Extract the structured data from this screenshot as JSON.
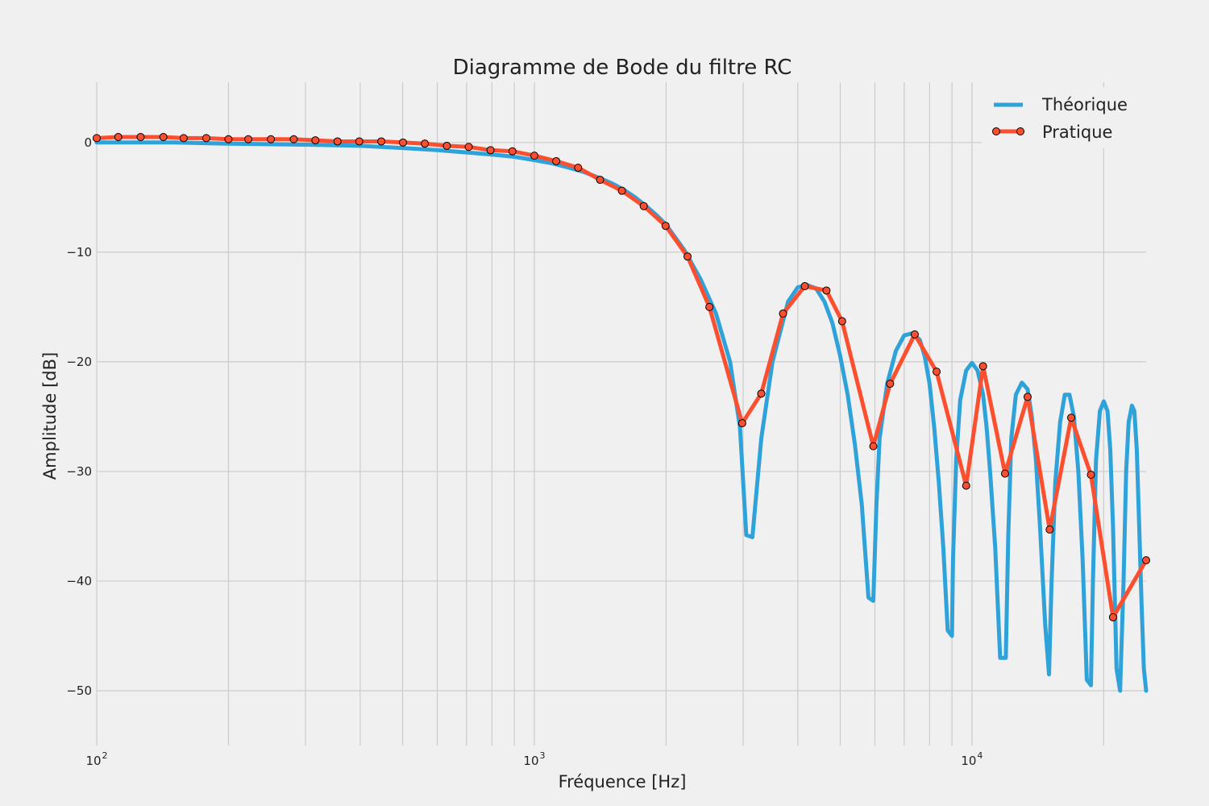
{
  "chart_data": {
    "type": "line",
    "title": "Diagramme de Bode du filtre RC",
    "xlabel": "Fréquence [Hz]",
    "ylabel": "Amplitude [dB]",
    "xscale": "log",
    "xlim": [
      100,
      25000
    ],
    "ylim": [
      -55,
      5.5
    ],
    "grid": true,
    "legend_position": "top-right",
    "x_ticks": [
      100,
      1000,
      10000
    ],
    "x_tick_labels": [
      "10",
      "10",
      "10"
    ],
    "x_tick_exponents": [
      "2",
      "3",
      "4"
    ],
    "y_ticks": [
      0,
      -10,
      -20,
      -30,
      -40,
      -50
    ],
    "y_tick_labels": [
      "0",
      "−10",
      "−20",
      "−30",
      "−40",
      "−50"
    ],
    "series": [
      {
        "name": "Théorique",
        "color": "#30a2da",
        "style": "line",
        "x": [
          100,
          150,
          200,
          300,
          400,
          500,
          600,
          700,
          800,
          900,
          1000,
          1100,
          1200,
          1300,
          1400,
          1500,
          1600,
          1700,
          1800,
          1900,
          2000,
          2200,
          2400,
          2600,
          2800,
          2950,
          3050,
          3150,
          3300,
          3500,
          3800,
          4000,
          4200,
          4400,
          4600,
          4800,
          5000,
          5200,
          5400,
          5600,
          5800,
          5950,
          6050,
          6150,
          6400,
          6700,
          7000,
          7300,
          7600,
          7800,
          8000,
          8200,
          8400,
          8600,
          8800,
          9000,
          9050,
          9200,
          9400,
          9700,
          10000,
          10300,
          10600,
          10800,
          11000,
          11300,
          11600,
          11950,
          12100,
          12300,
          12600,
          13000,
          13400,
          13700,
          14000,
          14300,
          14700,
          15000,
          15200,
          15500,
          15900,
          16300,
          16700,
          17100,
          17500,
          17900,
          18300,
          18700,
          18900,
          19200,
          19600,
          20000,
          20400,
          20700,
          21000,
          21400,
          21800,
          22200,
          22500,
          22800,
          23200,
          23500,
          23800,
          24100,
          24400,
          24700,
          25000
        ],
        "y": [
          0,
          0,
          -0.1,
          -0.2,
          -0.3,
          -0.5,
          -0.7,
          -0.9,
          -1.1,
          -1.3,
          -1.6,
          -1.9,
          -2.3,
          -2.7,
          -3.2,
          -3.7,
          -4.3,
          -5.0,
          -5.8,
          -6.6,
          -7.5,
          -9.8,
          -12.5,
          -15.6,
          -20.0,
          -26.0,
          -35.8,
          -36.0,
          -27.0,
          -20.0,
          -14.5,
          -13.2,
          -13.0,
          -13.3,
          -14.5,
          -16.5,
          -19.5,
          -23.0,
          -27.5,
          -33.0,
          -41.5,
          -41.8,
          -33.0,
          -27.0,
          -22.0,
          -19.0,
          -17.6,
          -17.4,
          -18.0,
          -19.5,
          -22.0,
          -26.0,
          -31.0,
          -37.0,
          -44.5,
          -45.0,
          -38.0,
          -29.0,
          -23.5,
          -20.8,
          -20.1,
          -20.8,
          -23.0,
          -26.0,
          -30.0,
          -37.0,
          -47.0,
          -47.0,
          -36.0,
          -27.0,
          -23.0,
          -21.9,
          -22.5,
          -25.0,
          -29.0,
          -35.0,
          -44.0,
          -48.5,
          -40.0,
          -31.0,
          -25.5,
          -23.0,
          -23.0,
          -25.0,
          -30.0,
          -38.0,
          -49.0,
          -49.5,
          -40.0,
          -29.0,
          -24.5,
          -23.6,
          -24.5,
          -28.0,
          -35.0,
          -48.0,
          -50.0,
          -40.0,
          -30.0,
          -25.5,
          -24.0,
          -24.5,
          -28.0,
          -35.0,
          -42.0,
          -48.0,
          -50.0
        ]
      },
      {
        "name": "Pratique",
        "color": "#fc4f30",
        "style": "line-markers",
        "x": [
          100,
          112,
          126,
          142,
          158,
          178,
          200,
          222,
          250,
          282,
          316,
          355,
          398,
          447,
          501,
          562,
          631,
          708,
          794,
          891,
          1000,
          1122,
          1259,
          1413,
          1585,
          1778,
          1995,
          2239,
          2512,
          2985,
          3300,
          3700,
          4150,
          4650,
          5050,
          5950,
          6500,
          7400,
          8300,
          9700,
          10600,
          11900,
          13400,
          15050,
          16850,
          18700,
          21000,
          25000
        ],
        "y": [
          0.4,
          0.5,
          0.5,
          0.5,
          0.4,
          0.4,
          0.3,
          0.3,
          0.3,
          0.3,
          0.2,
          0.1,
          0.1,
          0.1,
          0,
          -0.1,
          -0.3,
          -0.4,
          -0.7,
          -0.8,
          -1.2,
          -1.7,
          -2.3,
          -3.4,
          -4.4,
          -5.8,
          -7.6,
          -10.4,
          -15.0,
          -25.6,
          -22.9,
          -15.6,
          -13.1,
          -13.5,
          -16.3,
          -27.7,
          -22.0,
          -17.5,
          -20.9,
          -31.3,
          -20.4,
          -30.2,
          -23.2,
          -35.3,
          -25.1,
          -30.3,
          -43.3,
          -38.1
        ]
      }
    ]
  }
}
